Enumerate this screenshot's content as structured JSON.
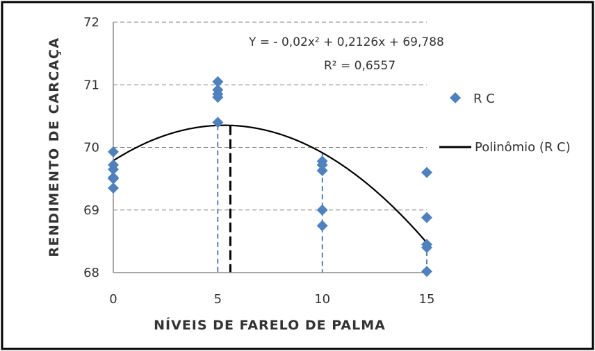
{
  "chart_data": {
    "type": "scatter",
    "xlabel": "NÍVEIS DE FARELO DE PALMA",
    "ylabel": "RENDIMENTO DE CARCAÇA",
    "xlim": [
      0,
      15
    ],
    "ylim": [
      68,
      72
    ],
    "x_ticks": [
      0,
      5,
      10,
      15
    ],
    "x_tick_labels": [
      "0",
      "5",
      "10",
      "15"
    ],
    "y_ticks": [
      68,
      69,
      70,
      71,
      72
    ],
    "y_tick_labels": [
      "68",
      "69",
      "70",
      "71",
      "72"
    ],
    "grid": "horizontal dashed",
    "legend_position": "right",
    "series": [
      {
        "name": "R C",
        "kind": "scatter",
        "marker": "diamond",
        "color": "#4f81bd",
        "points": [
          {
            "x": 0,
            "y": 69.35
          },
          {
            "x": 0,
            "y": 69.5
          },
          {
            "x": 0,
            "y": 69.52
          },
          {
            "x": 0,
            "y": 69.65
          },
          {
            "x": 0,
            "y": 69.72
          },
          {
            "x": 0,
            "y": 69.93
          },
          {
            "x": 5,
            "y": 70.4
          },
          {
            "x": 5,
            "y": 70.8
          },
          {
            "x": 5,
            "y": 70.85
          },
          {
            "x": 5,
            "y": 70.92
          },
          {
            "x": 5,
            "y": 71.05
          },
          {
            "x": 10,
            "y": 68.75
          },
          {
            "x": 10,
            "y": 69.0
          },
          {
            "x": 10,
            "y": 69.63
          },
          {
            "x": 10,
            "y": 69.72
          },
          {
            "x": 10,
            "y": 69.78
          },
          {
            "x": 15,
            "y": 68.02
          },
          {
            "x": 15,
            "y": 68.4
          },
          {
            "x": 15,
            "y": 68.45
          },
          {
            "x": 15,
            "y": 68.88
          },
          {
            "x": 15,
            "y": 69.6
          }
        ]
      },
      {
        "name": "Polinômio (R C)",
        "kind": "polynomial",
        "color": "#000000",
        "coefficients": {
          "a": -0.02,
          "b": 0.2126,
          "c": 69.788
        }
      }
    ],
    "annotations": {
      "equation": "Y = - 0,02x² + 0,2126x + 69,788",
      "r_squared": "R² = 0,6557"
    },
    "vertical_markers": [
      {
        "x": 5,
        "color": "#2e5fa3",
        "style": "dashed"
      },
      {
        "x": 10,
        "color": "#2e5fa3",
        "style": "dashed"
      },
      {
        "x": 15,
        "color": "#2e5fa3",
        "style": "dashed"
      },
      {
        "x": 5.6,
        "color": "#000000",
        "style": "dashed-bold"
      }
    ]
  }
}
